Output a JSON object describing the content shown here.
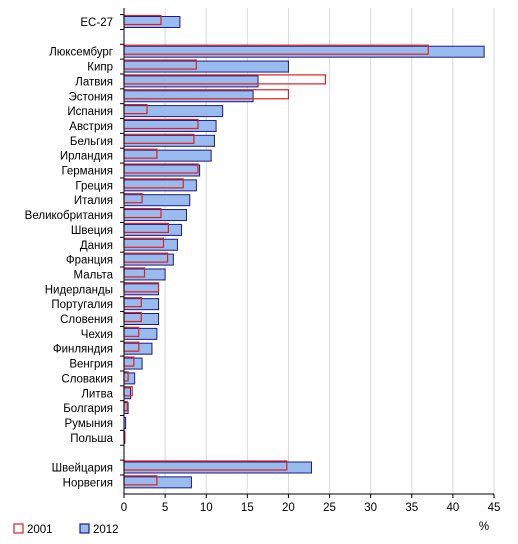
{
  "chart_data": {
    "type": "bar",
    "orientation": "horizontal",
    "categories": [
      "ЕС-27",
      "",
      "Люксембург",
      "Кипр",
      "Латвия",
      "Эстония",
      "Испания",
      "Австрия",
      "Бельгия",
      "Ирландия",
      "Германия",
      "Греция",
      "Италия",
      "Великобритания",
      "Швеция",
      "Дания",
      "Франция",
      "Мальта",
      "Нидерланды",
      "Португалия",
      "Словения",
      "Чехия",
      "Финляндия",
      "Венгрия",
      "Словакия",
      "Литва",
      "Болгария",
      "Румыния",
      "Польша",
      "",
      "Швейцария",
      "Норвегия"
    ],
    "series": [
      {
        "name": "2001",
        "color": "#e0201a",
        "fill": "#ffffff",
        "values": [
          4.5,
          null,
          37,
          8.8,
          24.5,
          20,
          2.8,
          9,
          8.5,
          4,
          9,
          7.2,
          2.2,
          4.5,
          5.4,
          4.8,
          5.3,
          2.5,
          4.2,
          2.1,
          2.1,
          1.8,
          1.8,
          1.2,
          0.5,
          1,
          0.4,
          0,
          0.1,
          null,
          19.8,
          4
        ]
      },
      {
        "name": "2012",
        "color": "#1a1a8c",
        "fill": "#99bbee",
        "values": [
          6.8,
          null,
          43.8,
          20,
          16.3,
          15.7,
          12,
          11.2,
          11,
          10.6,
          9.2,
          8.8,
          8,
          7.6,
          7,
          6.5,
          6,
          5,
          4.2,
          4.2,
          4.2,
          4,
          3.4,
          2.2,
          1.3,
          0.8,
          0.5,
          0.2,
          0.1,
          null,
          22.8,
          8.2
        ]
      }
    ],
    "xlim": [
      0,
      45
    ],
    "xticks": [
      "0",
      "5",
      "10",
      "15",
      "20",
      "25",
      "30",
      "35",
      "40",
      "45"
    ],
    "xunit": "%",
    "legend": {
      "position": "bottom-left"
    },
    "grid": true
  }
}
